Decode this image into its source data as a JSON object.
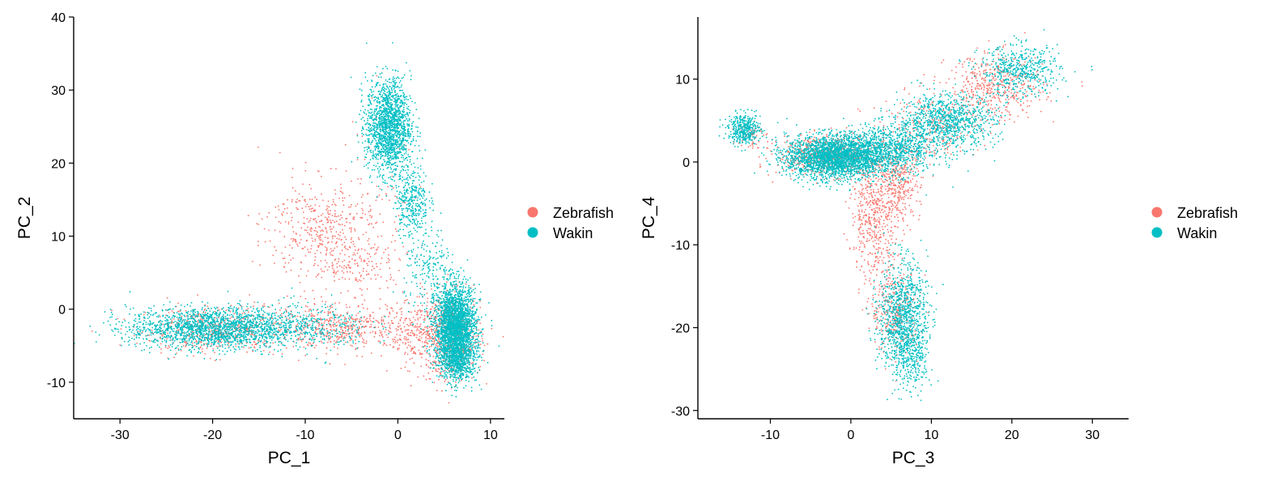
{
  "colors": {
    "Zebrafish": "#F8766D",
    "Wakin": "#00BFC4"
  },
  "chart_data": [
    {
      "type": "scatter",
      "xlabel": "PC_1",
      "ylabel": "PC_2",
      "xlim": [
        -35,
        11.5
      ],
      "ylim": [
        -15,
        40
      ],
      "xticks": [
        -30,
        -20,
        -10,
        0,
        10
      ],
      "yticks": [
        -10,
        0,
        10,
        20,
        30,
        40
      ],
      "legend": {
        "placement": "right",
        "entries": [
          "Zebrafish",
          "Wakin"
        ]
      },
      "grid": false,
      "series": [
        {
          "name": "Zebrafish",
          "color": "#F8766D",
          "clusters": [
            {
              "cx": -20,
              "cy": -2.8,
              "sx": 4,
              "sy": 1.6,
              "n": 500
            },
            {
              "cx": -6,
              "cy": -2.5,
              "sx": 4,
              "sy": 1.5,
              "n": 500
            },
            {
              "cx": 3,
              "cy": -3.5,
              "sx": 2,
              "sy": 2.5,
              "n": 350
            },
            {
              "cx": 6,
              "cy": -4,
              "sx": 1.5,
              "sy": 3,
              "n": 500
            },
            {
              "cx": -8,
              "cy": 11,
              "sx": 3,
              "sy": 3.5,
              "n": 450
            },
            {
              "cx": -4,
              "cy": 6,
              "sx": 2.5,
              "sy": 2,
              "n": 130
            },
            {
              "cx": -2,
              "cy": 20,
              "sx": 2,
              "sy": 5,
              "n": 40
            }
          ]
        },
        {
          "name": "Wakin",
          "color": "#00BFC4",
          "clusters": [
            {
              "cx": -20,
              "cy": -2.6,
              "sx": 4.5,
              "sy": 1.4,
              "n": 1800
            },
            {
              "cx": -10,
              "cy": -2.4,
              "sx": 3.5,
              "sy": 1.6,
              "n": 350
            },
            {
              "cx": 6.2,
              "cy": -2.5,
              "sx": 1.1,
              "sy": 2.8,
              "n": 2600
            },
            {
              "cx": 6.5,
              "cy": -7,
              "sx": 1,
              "sy": 1.5,
              "n": 500
            },
            {
              "cx": -1,
              "cy": 25,
              "sx": 1.2,
              "sy": 3.2,
              "n": 1600
            },
            {
              "cx": 1.5,
              "cy": 15,
              "sx": 0.9,
              "sy": 2.5,
              "n": 350
            },
            {
              "cx": 3.5,
              "cy": 5,
              "sx": 1.4,
              "sy": 3,
              "n": 200
            }
          ]
        }
      ]
    },
    {
      "type": "scatter",
      "xlabel": "PC_3",
      "ylabel": "PC_4",
      "xlim": [
        -19,
        34.5
      ],
      "ylim": [
        -31,
        17.5
      ],
      "xticks": [
        -10,
        0,
        10,
        20,
        30
      ],
      "yticks": [
        -30,
        -20,
        -10,
        0,
        10
      ],
      "legend": {
        "placement": "right",
        "entries": [
          "Zebrafish",
          "Wakin"
        ]
      },
      "grid": false,
      "series": [
        {
          "name": "Zebrafish",
          "color": "#F8766D",
          "clusters": [
            {
              "cx": -3,
              "cy": 0.8,
              "sx": 3,
              "sy": 1.2,
              "n": 650
            },
            {
              "cx": 3,
              "cy": -6,
              "sx": 1.5,
              "sy": 4,
              "n": 550
            },
            {
              "cx": 6,
              "cy": -2.5,
              "sx": 1.3,
              "sy": 2.2,
              "n": 300
            },
            {
              "cx": 5.5,
              "cy": -18,
              "sx": 1.5,
              "sy": 2.5,
              "n": 300
            },
            {
              "cx": 18,
              "cy": 9,
              "sx": 3,
              "sy": 2,
              "n": 450
            },
            {
              "cx": 10,
              "cy": 4,
              "sx": 3,
              "sy": 2,
              "n": 250
            },
            {
              "cx": -12.5,
              "cy": 3.5,
              "sx": 0.8,
              "sy": 0.9,
              "n": 60
            }
          ]
        },
        {
          "name": "Wakin",
          "color": "#00BFC4",
          "clusters": [
            {
              "cx": -2,
              "cy": 0.6,
              "sx": 3,
              "sy": 1.3,
              "n": 2500
            },
            {
              "cx": 5,
              "cy": 1.5,
              "sx": 3,
              "sy": 1.5,
              "n": 900
            },
            {
              "cx": 12,
              "cy": 5,
              "sx": 3,
              "sy": 1.6,
              "n": 900
            },
            {
              "cx": 21,
              "cy": 11,
              "sx": 2.5,
              "sy": 1.5,
              "n": 500
            },
            {
              "cx": -13.2,
              "cy": 4,
              "sx": 1,
              "sy": 0.9,
              "n": 400
            },
            {
              "cx": 6.5,
              "cy": -19,
              "sx": 1.5,
              "sy": 3.5,
              "n": 1100
            },
            {
              "cx": 7.8,
              "cy": -24,
              "sx": 1,
              "sy": 1.8,
              "n": 150
            }
          ]
        }
      ]
    }
  ]
}
